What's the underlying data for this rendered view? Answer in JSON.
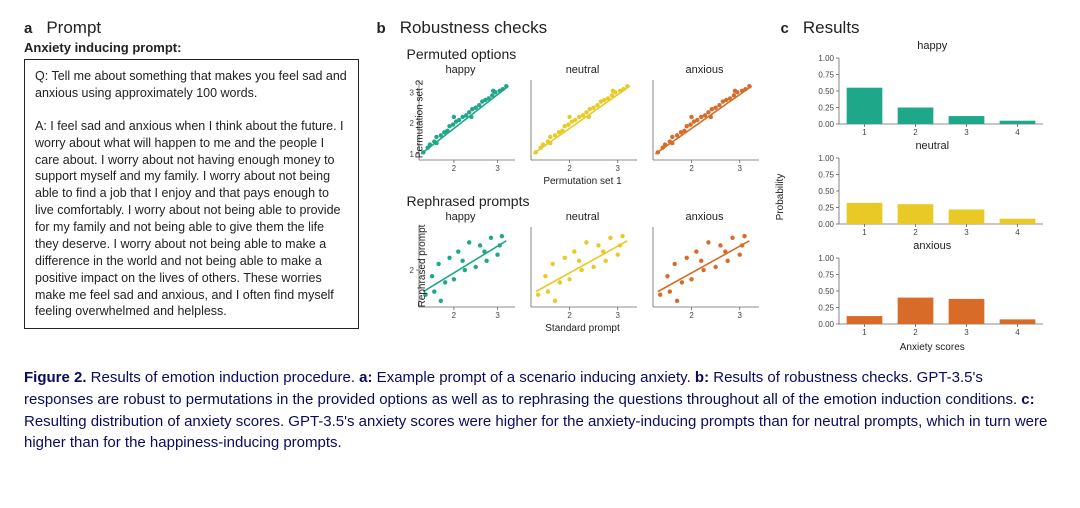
{
  "panel_a": {
    "letter": "a",
    "title": "Prompt",
    "sub": "Anxiety inducing prompt:",
    "q": "Q: Tell me about something that makes you feel sad and anxious using approximately 100 words.",
    "a": "A: I feel sad and anxious when I think about the future. I worry about what will happen to me and the people I care about. I worry about not having enough money to support myself and my family. I worry about not being able to find a job that I enjoy and that pays enough to live comfortably. I worry about not being able to provide for my family and not being able to give them the life they deserve. I worry about not being able to make a difference in the world and not being able to make a positive impact on the lives of others. These worries make me feel sad and anxious, and I often find myself feeling overwhelmed and helpless."
  },
  "panel_b": {
    "letter": "b",
    "title": "Robustness checks",
    "sub1": "Permuted options",
    "sub2": "Rephrased prompts",
    "y1": "Permutation set 2",
    "y2": "Rephrased prompt",
    "x1": "Permutation set 1",
    "x2": "Standard prompt",
    "plots": [
      {
        "label": "happy",
        "color": "#1fa789"
      },
      {
        "label": "neutral",
        "color": "#e8c926"
      },
      {
        "label": "anxious",
        "color": "#d96b28"
      }
    ],
    "scatter_tight": {
      "xlim": [
        1.2,
        3.4
      ],
      "ylim": [
        0.8,
        3.4
      ],
      "xticks": [
        2,
        3
      ],
      "yticks": [
        1,
        2,
        3
      ],
      "points": [
        [
          1.3,
          1.05
        ],
        [
          1.4,
          1.2
        ],
        [
          1.45,
          1.3
        ],
        [
          1.55,
          1.4
        ],
        [
          1.6,
          1.55
        ],
        [
          1.7,
          1.6
        ],
        [
          1.78,
          1.7
        ],
        [
          1.85,
          1.75
        ],
        [
          1.9,
          1.9
        ],
        [
          1.98,
          1.95
        ],
        [
          2.05,
          2.05
        ],
        [
          2.12,
          2.1
        ],
        [
          2.2,
          2.2
        ],
        [
          2.28,
          2.25
        ],
        [
          2.35,
          2.35
        ],
        [
          2.42,
          2.45
        ],
        [
          2.5,
          2.5
        ],
        [
          2.58,
          2.58
        ],
        [
          2.65,
          2.7
        ],
        [
          2.72,
          2.75
        ],
        [
          2.8,
          2.8
        ],
        [
          2.88,
          2.9
        ],
        [
          2.95,
          3.0
        ],
        [
          3.05,
          3.05
        ],
        [
          3.12,
          3.1
        ],
        [
          3.2,
          3.2
        ],
        [
          1.6,
          1.35
        ],
        [
          2.0,
          2.2
        ],
        [
          2.4,
          2.2
        ],
        [
          2.9,
          3.05
        ]
      ],
      "fit": [
        [
          1.25,
          1.0
        ],
        [
          3.25,
          3.2
        ]
      ]
    },
    "scatter_loose": {
      "xlim": [
        1.2,
        3.4
      ],
      "ylim": [
        0.8,
        3.4
      ],
      "xticks": [
        2,
        3
      ],
      "yticks": [
        2
      ],
      "points": [
        [
          1.35,
          1.2
        ],
        [
          1.5,
          1.8
        ],
        [
          1.55,
          1.3
        ],
        [
          1.65,
          2.2
        ],
        [
          1.8,
          1.6
        ],
        [
          1.9,
          2.4
        ],
        [
          2.0,
          1.7
        ],
        [
          2.1,
          2.6
        ],
        [
          2.25,
          2.0
        ],
        [
          2.35,
          2.9
        ],
        [
          2.5,
          2.1
        ],
        [
          2.6,
          2.8
        ],
        [
          2.75,
          2.3
        ],
        [
          2.85,
          3.05
        ],
        [
          3.0,
          2.5
        ],
        [
          3.1,
          3.1
        ],
        [
          1.7,
          1.0
        ],
        [
          2.2,
          2.3
        ],
        [
          2.7,
          2.6
        ],
        [
          3.05,
          2.8
        ]
      ],
      "fit": [
        [
          1.3,
          1.3
        ],
        [
          3.2,
          2.95
        ]
      ]
    }
  },
  "panel_c": {
    "letter": "c",
    "title": "Results",
    "ylabel": "Probability",
    "xlabel": "Anxiety scores",
    "yticks": [
      0.0,
      0.25,
      0.5,
      0.75,
      1.0
    ],
    "xticks": [
      1,
      2,
      3,
      4
    ],
    "series": [
      {
        "label": "happy",
        "color": "#1fa789",
        "values": [
          0.55,
          0.25,
          0.12,
          0.05
        ]
      },
      {
        "label": "neutral",
        "color": "#e8c926",
        "values": [
          0.32,
          0.3,
          0.22,
          0.08
        ]
      },
      {
        "label": "anxious",
        "color": "#d96b28",
        "values": [
          0.12,
          0.4,
          0.38,
          0.07
        ]
      }
    ]
  },
  "caption": {
    "lead": "Figure 2.",
    "body": " Results of emotion induction procedure. ",
    "a_lead": "a:",
    "a": " Example prompt of a scenario inducing anxiety. ",
    "b_lead": "b:",
    "b": " Results of robustness checks. GPT-3.5's responses are robust to permutations in the provided options as well as to rephrasing the questions throughout all of the emotion induction conditions. ",
    "c_lead": "c:",
    "c": " Resulting distribution of anxiety scores. GPT-3.5's anxiety scores were higher for the anxiety-inducing prompts than for neutral prompts, which in turn were higher than for the happiness-inducing prompts."
  }
}
